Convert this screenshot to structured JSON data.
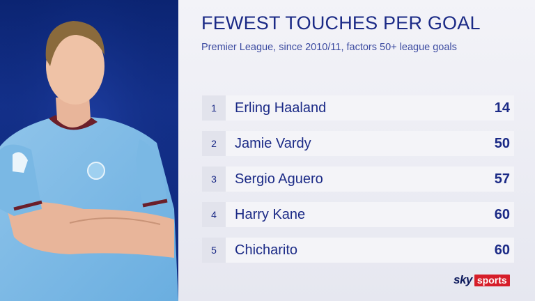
{
  "chart_data": {
    "type": "table",
    "title": "FEWEST TOUCHES PER GOAL",
    "subtitle": "Premier League, since 2010/11, factors 50+ league goals",
    "rows": [
      {
        "rank": "1",
        "name": "Erling Haaland",
        "value": 14
      },
      {
        "rank": "2",
        "name": "Jamie Vardy",
        "value": 50
      },
      {
        "rank": "3",
        "name": "Sergio Aguero",
        "value": 57
      },
      {
        "rank": "4",
        "name": "Harry Kane",
        "value": 60
      },
      {
        "rank": "5",
        "name": "Chicharito",
        "value": 60
      }
    ]
  },
  "branding": {
    "logo_sky": "sky",
    "logo_sports": "sports",
    "accent_color": "#d61e2a",
    "text_color": "#1b2a86"
  }
}
